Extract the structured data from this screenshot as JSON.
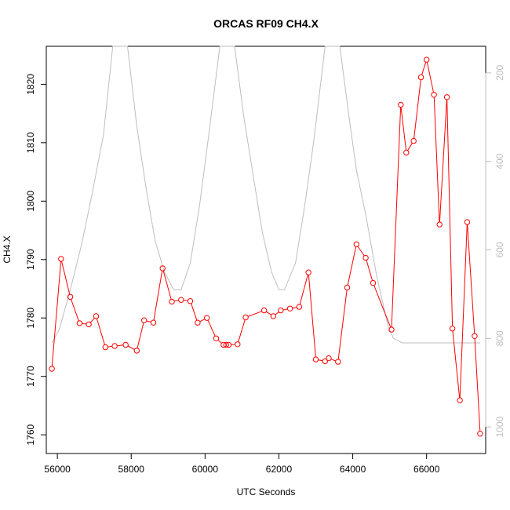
{
  "chart_data": {
    "type": "line",
    "title": "ORCAS RF09 CH4.X",
    "xlabel": "UTC Seconds",
    "ylabel": "CH4.X",
    "xlim": [
      55700,
      67600
    ],
    "ylim": [
      1756.8,
      1826.5
    ],
    "x_ticks": [
      56000,
      58000,
      60000,
      62000,
      64000,
      66000
    ],
    "y_ticks": [
      1760,
      1770,
      1780,
      1790,
      1800,
      1810,
      1820
    ],
    "y2_ticks": [
      200,
      400,
      600,
      800,
      1000
    ],
    "y2_reversed": true,
    "y2lim": [
      1060,
      140
    ],
    "grid": false,
    "colors": {
      "primary": "#ff0000",
      "secondary": "#bebebe"
    },
    "series": [
      {
        "type": "line+points",
        "color": "#ff0000",
        "axis": "left",
        "points": [
          [
            55850,
            1771.3
          ],
          [
            56100,
            1790.1
          ],
          [
            56350,
            1783.6
          ],
          [
            56600,
            1779.1
          ],
          [
            56850,
            1778.9
          ],
          [
            57050,
            1780.3
          ],
          [
            57300,
            1775.0
          ],
          [
            57550,
            1775.2
          ],
          [
            57850,
            1775.4
          ],
          [
            58150,
            1774.4
          ],
          [
            58350,
            1779.6
          ],
          [
            58600,
            1779.2
          ],
          [
            58850,
            1788.5
          ],
          [
            59100,
            1782.8
          ],
          [
            59350,
            1783.1
          ],
          [
            59600,
            1782.9
          ],
          [
            59800,
            1779.2
          ],
          [
            60050,
            1780.0
          ],
          [
            60300,
            1776.5
          ],
          [
            60500,
            1775.4
          ],
          [
            60570,
            1775.4
          ],
          [
            60640,
            1775.4
          ],
          [
            60880,
            1775.5
          ],
          [
            61100,
            1780.1
          ],
          [
            61600,
            1781.3
          ],
          [
            61850,
            1780.3
          ],
          [
            62050,
            1781.3
          ],
          [
            62300,
            1781.6
          ],
          [
            62550,
            1781.9
          ],
          [
            62800,
            1787.8
          ],
          [
            63000,
            1772.9
          ],
          [
            63250,
            1772.6
          ],
          [
            63350,
            1773.1
          ],
          [
            63600,
            1772.5
          ],
          [
            63850,
            1785.2
          ],
          [
            64100,
            1792.6
          ],
          [
            64350,
            1790.3
          ],
          [
            64550,
            1786.0
          ],
          [
            65050,
            1778.0
          ],
          [
            65300,
            1816.5
          ],
          [
            65450,
            1808.3
          ],
          [
            65650,
            1810.3
          ],
          [
            65850,
            1821.2
          ],
          [
            66000,
            1824.2
          ],
          [
            66200,
            1818.2
          ],
          [
            66350,
            1796.0
          ],
          [
            66550,
            1817.8
          ],
          [
            66700,
            1778.2
          ],
          [
            66900,
            1765.9
          ],
          [
            67100,
            1796.4
          ],
          [
            67300,
            1776.9
          ],
          [
            67450,
            1760.2
          ]
        ]
      },
      {
        "type": "line",
        "color": "#bebebe",
        "axis": "right",
        "points": [
          [
            55850,
            810
          ],
          [
            56050,
            780
          ],
          [
            56350,
            690
          ],
          [
            56650,
            590
          ],
          [
            56950,
            470
          ],
          [
            57250,
            340
          ],
          [
            57500,
            140
          ],
          [
            57900,
            140
          ],
          [
            58150,
            320
          ],
          [
            58400,
            460
          ],
          [
            58650,
            580
          ],
          [
            58900,
            650
          ],
          [
            59150,
            690
          ],
          [
            59350,
            690
          ],
          [
            59600,
            630
          ],
          [
            59850,
            500
          ],
          [
            60100,
            340
          ],
          [
            60400,
            140
          ],
          [
            60800,
            140
          ],
          [
            61050,
            300
          ],
          [
            61300,
            430
          ],
          [
            61550,
            560
          ],
          [
            61800,
            650
          ],
          [
            62000,
            690
          ],
          [
            62150,
            690
          ],
          [
            62450,
            630
          ],
          [
            62700,
            500
          ],
          [
            62950,
            350
          ],
          [
            63250,
            140
          ],
          [
            63650,
            140
          ],
          [
            63900,
            300
          ],
          [
            64100,
            420
          ],
          [
            64350,
            520
          ],
          [
            64650,
            660
          ],
          [
            64950,
            770
          ],
          [
            65100,
            800
          ],
          [
            65350,
            810
          ],
          [
            66500,
            810
          ],
          [
            67450,
            810
          ]
        ]
      }
    ]
  }
}
